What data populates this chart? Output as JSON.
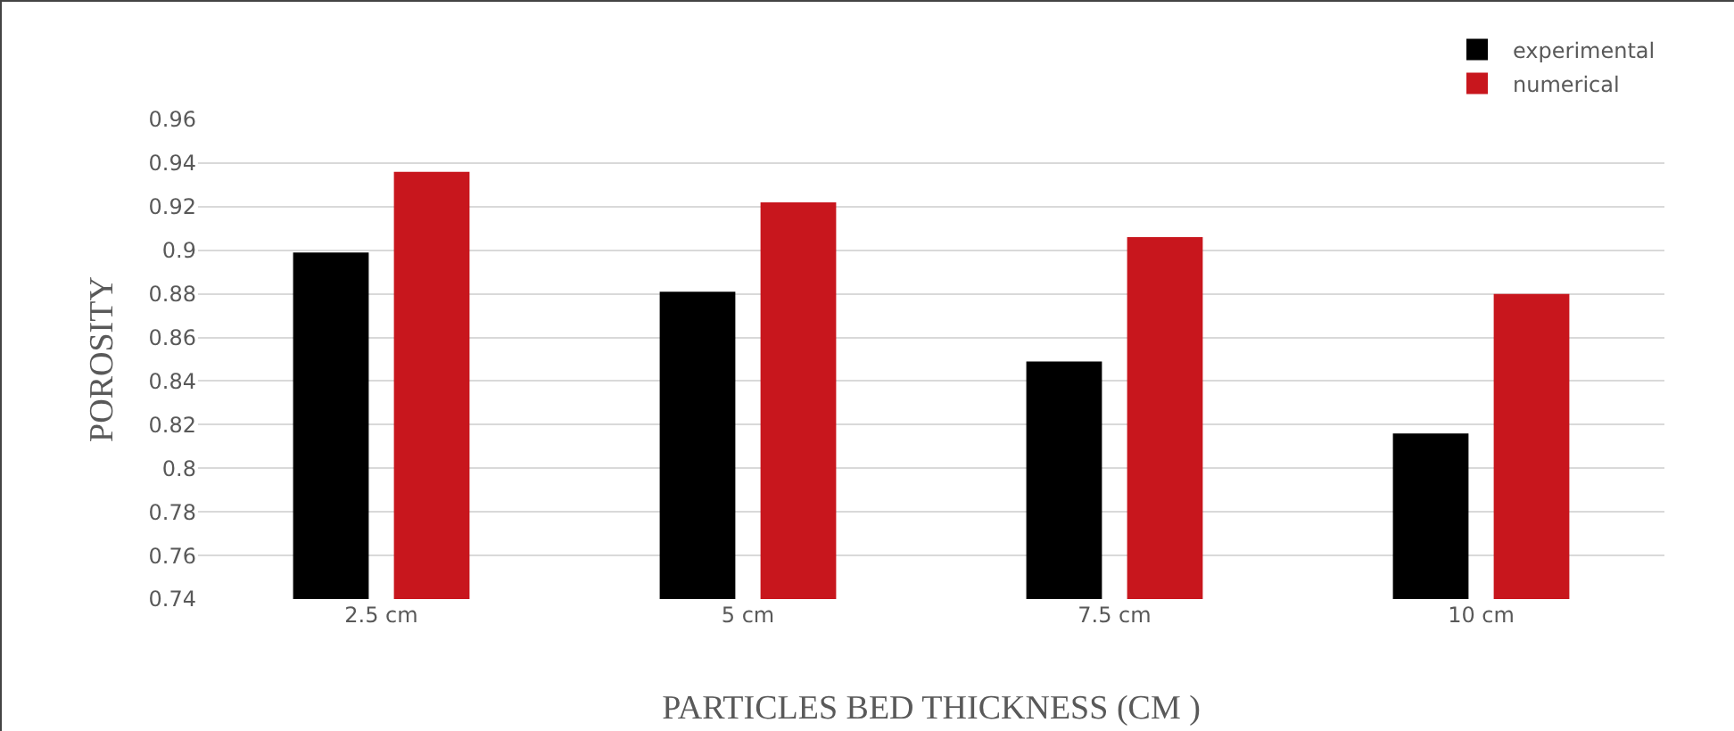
{
  "chart_data": {
    "type": "bar",
    "xlabel": "PARTICLES BED THICKNESS (CM )",
    "ylabel": "POROSITY",
    "categories": [
      "2.5 cm",
      "5 cm",
      "7.5 cm",
      "10 cm"
    ],
    "series": [
      {
        "name": "experimental",
        "color": "#000000",
        "values": [
          0.899,
          0.881,
          0.849,
          0.816
        ]
      },
      {
        "name": "numerical",
        "color": "#c8161d",
        "values": [
          0.936,
          0.922,
          0.906,
          0.88
        ]
      }
    ],
    "ylim": [
      0.74,
      0.96
    ],
    "yticks": [
      0.74,
      0.76,
      0.78,
      0.8,
      0.82,
      0.84,
      0.86,
      0.88,
      0.9,
      0.92,
      0.94,
      0.96
    ],
    "grid": "y",
    "legend": "top right"
  }
}
